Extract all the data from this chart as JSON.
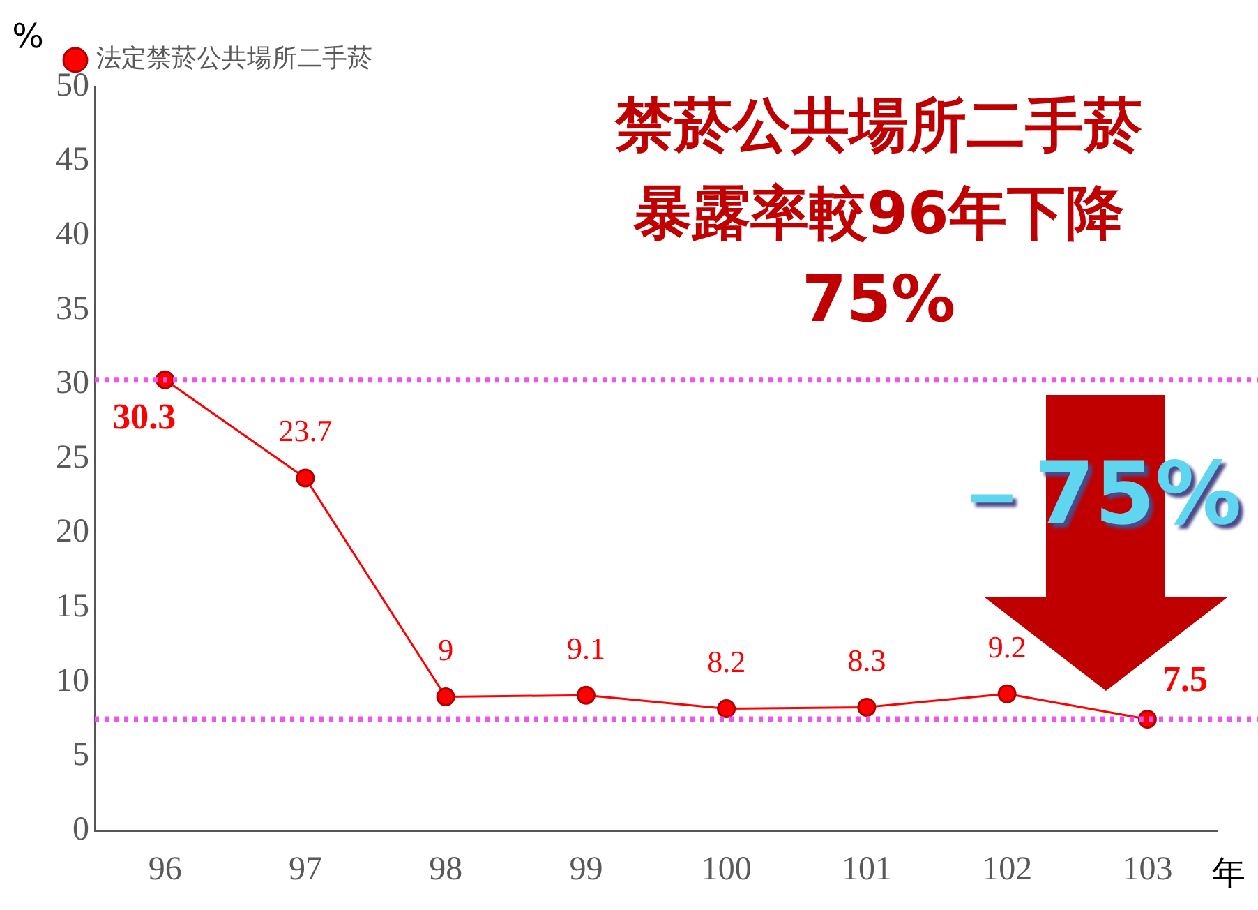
{
  "chart_data": {
    "type": "line",
    "ylabel": "%",
    "xlabel": "年",
    "categories": [
      "96",
      "97",
      "98",
      "99",
      "100",
      "101",
      "102",
      "103"
    ],
    "series": [
      {
        "name": "法定禁菸公共場所二手菸",
        "color": "#ff0000",
        "values": [
          30.3,
          23.7,
          9,
          9.1,
          8.2,
          8.3,
          9.2,
          7.5
        ]
      }
    ],
    "ylim": [
      0,
      50
    ],
    "yticks": [
      0,
      5,
      10,
      15,
      20,
      25,
      30,
      35,
      40,
      45,
      50
    ],
    "grid": false,
    "legend": "top left",
    "marker": "circle",
    "line_style": "solid",
    "data_labels": true,
    "ref_lines": [
      {
        "axis": "y",
        "value": 30.3,
        "color": "#ee55ee",
        "line_style": "dotted"
      },
      {
        "axis": "y",
        "value": 7.5,
        "color": "#ee55ee",
        "line_style": "dotted"
      }
    ],
    "annotations": [
      "禁菸公共場所二手菸",
      "暴露率較96年下降",
      "75%",
      "－75%"
    ]
  }
}
